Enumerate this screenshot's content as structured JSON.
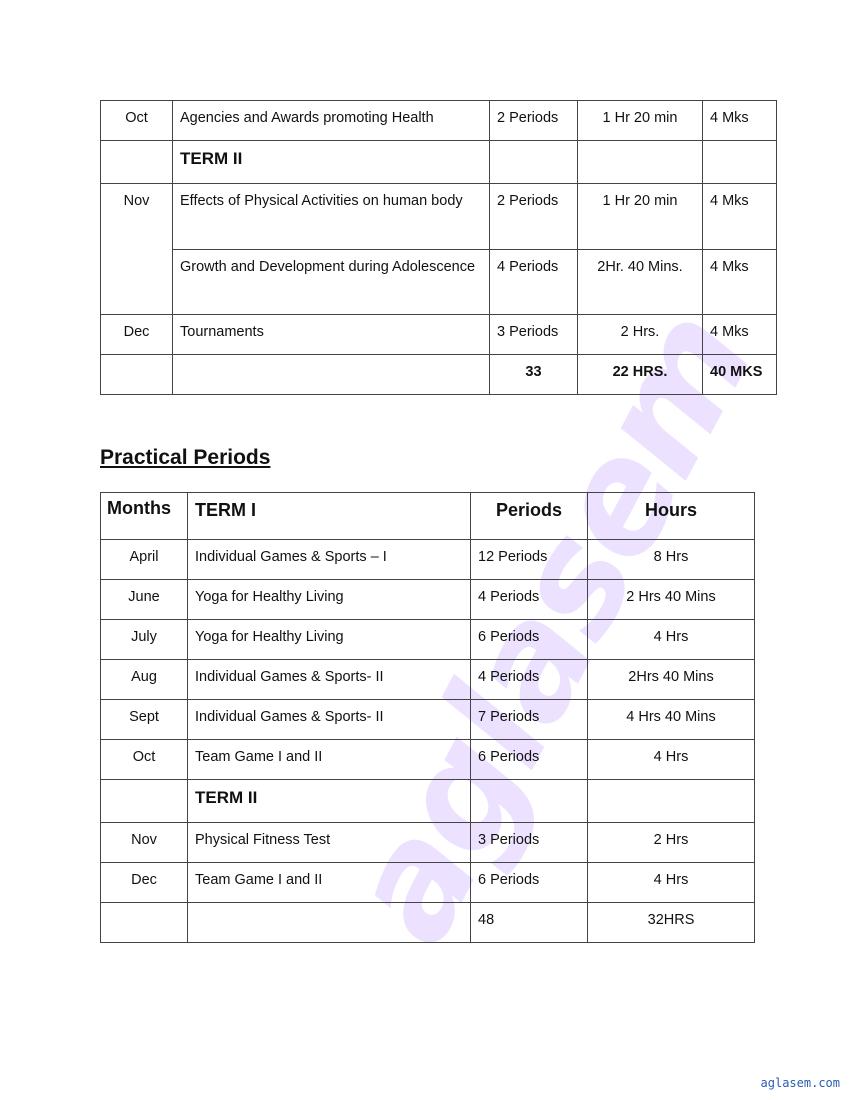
{
  "theory_table": {
    "rows": [
      {
        "month": "Oct",
        "topic": "Agencies and Awards promoting Health",
        "periods": "2 Periods",
        "hours": "1 Hr 20 min",
        "marks": "4 Mks"
      },
      {
        "month": "",
        "topic": "TERM II",
        "periods": "",
        "hours": "",
        "marks": ""
      },
      {
        "month": "Nov",
        "topic": "Effects of Physical Activities on human body",
        "periods": "2 Periods",
        "hours": "1 Hr 20 min",
        "marks": "4 Mks"
      },
      {
        "month": "",
        "topic": "Growth and Development during Adolescence",
        "periods": "4 Periods",
        "hours": "2Hr. 40  Mins.",
        "marks": "4 Mks"
      },
      {
        "month": "Dec",
        "topic": "Tournaments",
        "periods": "3 Periods",
        "hours": "2 Hrs.",
        "marks": "4 Mks"
      },
      {
        "month": "",
        "topic": "",
        "periods": "33",
        "hours": "22 HRS.",
        "marks": "40 MKS"
      }
    ]
  },
  "practical": {
    "title": "Practical Periods",
    "headers": {
      "months": "Months",
      "term": "TERM I",
      "periods": "Periods",
      "hours": "Hours"
    },
    "rows": [
      {
        "month": "April",
        "topic": "Individual Games & Sports – I",
        "periods": "12 Periods",
        "hours": "8 Hrs"
      },
      {
        "month": "June",
        "topic": "Yoga for Healthy Living",
        "periods": "4 Periods",
        "hours": "2 Hrs 40 Mins"
      },
      {
        "month": "July",
        "topic": "Yoga for Healthy Living",
        "periods": "6 Periods",
        "hours": "4 Hrs"
      },
      {
        "month": "Aug",
        "topic": "Individual Games & Sports- II",
        "periods": "4 Periods",
        "hours": "2Hrs 40 Mins"
      },
      {
        "month": "Sept",
        "topic": "Individual Games & Sports- II",
        "periods": "7 Periods",
        "hours": "4 Hrs 40 Mins"
      },
      {
        "month": "Oct",
        "topic": "Team Game I and II",
        "periods": "6 Periods",
        "hours": "4 Hrs"
      },
      {
        "month": "",
        "topic": "TERM II",
        "periods": "",
        "hours": ""
      },
      {
        "month": "Nov",
        "topic": "Physical Fitness Test",
        "periods": "3 Periods",
        "hours": "2 Hrs"
      },
      {
        "month": "Dec",
        "topic": "Team Game I and II",
        "periods": "6 Periods",
        "hours": "4 Hrs"
      },
      {
        "month": "",
        "topic": "",
        "periods": "48",
        "hours": "32HRS"
      }
    ]
  },
  "watermark": "aglasem",
  "footer": "aglasem.com"
}
